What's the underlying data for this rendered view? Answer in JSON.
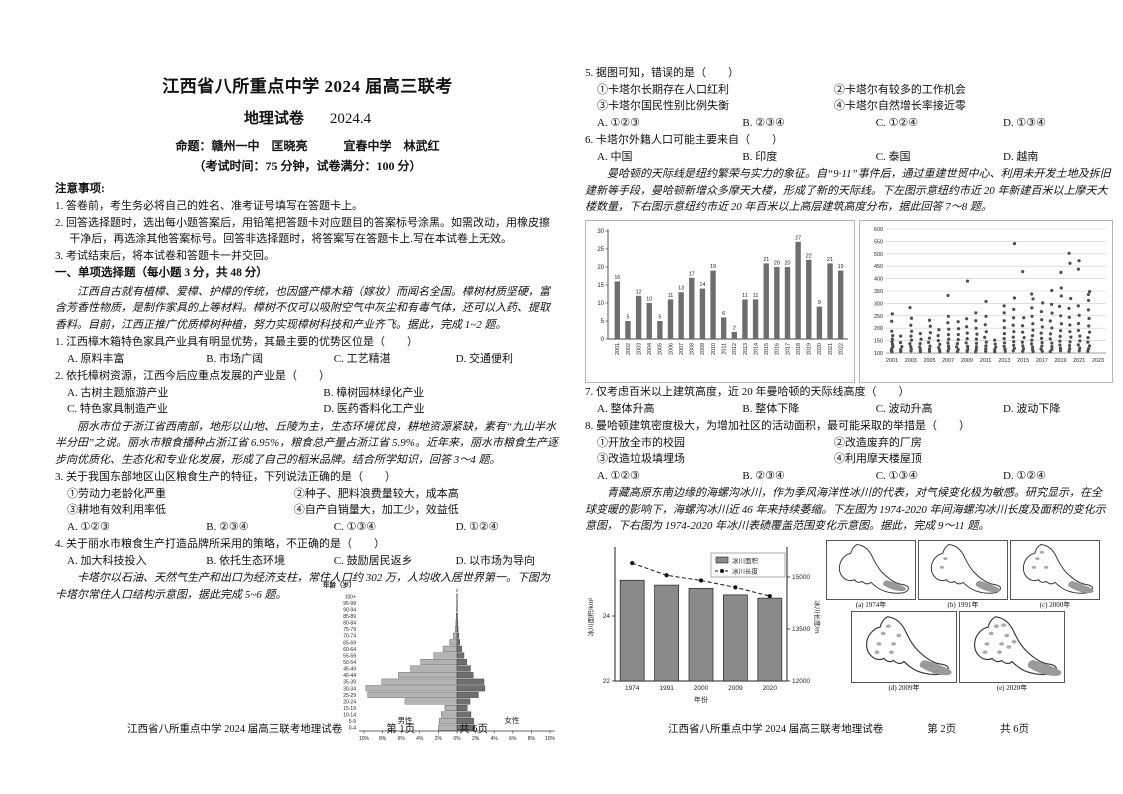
{
  "doc": {
    "title": "江西省八所重点中学 2024 届高三联考",
    "subject": "地理试卷",
    "date": "2024.4",
    "authors": "命题：赣州一中　匡晓亮　　　宜春中学　林武红",
    "exam_info": "（考试时间：75 分钟，试卷满分：100 分）",
    "notice_title": "注意事项:",
    "notices": [
      "1. 答卷前，考生务必将自己的姓名、准考证号填写在答题卡上。",
      "2. 回答选择题时，选出每小题答案后，用铅笔把答题卡对应题目的答案标号涂黑。如需改动，用橡皮擦干净后，再选涂其他答案标号。回答非选择题时，将答案写在答题卡上.写在本试卷上无效。",
      "3. 考试结束后，将本试卷和答题卡一并交回。"
    ],
    "section_title": "一、单项选择题（每小题 3 分，共 48 分）",
    "footer_text": "江西省八所重点中学 2024 届高三联考地理试卷",
    "page1_no": "第 1页",
    "page2_no": "第 2页",
    "pages_total": "共 6页"
  },
  "passages": {
    "p1": "江西自古就有植樟、爱樟、护樟的传统，也因盛产樟木箱（嫁妆）而闻名全国。樟树材质坚硬，富含芳香性物质，是制作家具的上等材料。樟树不仅可以吸附空气中灰尘和有毒气体，还可以入药、提取香料。目前，江西正推广优质樟树种植，努力实现樟树科技和产业齐飞。据此，完成 1~2 题。",
    "p2": "丽水市位于浙江省西南部，地形以山地、丘陵为主，生态环境优良，耕地资源紧缺，素有“九山半水半分田”之说。丽水市粮食播种占浙江省 6.95%，粮食总产量占浙江省 5.9%。近年来，丽水市粮食生产逐步向优质化、生态化和专业化发展，形成了自己的稻米品牌。结合所学知识，回答 3～4 题。",
    "p3": "卡塔尔以石油、天然气生产和出口为经济支柱，常住人口约 302 万，人均收入居世界第一。下图为卡塔尔常住人口结构示意图，据此完成 5~6 题。",
    "p4": "曼哈顿的天际线是纽约繁荣与实力的象征。自“9·11”事件后，通过重建世贸中心、利用未开发土地及拆旧建新等手段，曼哈顿新增众多摩天大楼，形成了新的天际线。下左图示意纽约市近 20 年新建百米以上摩天大楼数量，下右图示意纽约市近 20 年百米以上高层建筑高度分布，据此回答 7～8 题。",
    "p5": "青藏高原东南边缘的海螺沟冰川，作为季风海洋性冰川的代表，对气候变化极为敏感。研究显示，在全球变暖的影响下，海螺沟冰川近 46 年来持续萎缩。下左图为 1974-2020 年间海螺沟冰川长度及面积的变化示意图，下右图为 1974-2020 年冰川表碛覆盖范围变化示意图。据此，完成 9～11 题。"
  },
  "questions": {
    "q1": {
      "stem": "1. 江西樟木箱特色家具产业具有明显优势，其最主要的优势区位是（　　）",
      "cols": 4,
      "options": [
        "A. 原料丰富",
        "B. 市场广阔",
        "C. 工艺精湛",
        "D. 交通便利"
      ]
    },
    "q2": {
      "stem": "2. 依托樟树资源，江西今后应重点发展的产业是（　　）",
      "cols": 2,
      "options": [
        "A. 古树主题旅游产业",
        "B. 樟树园林绿化产业",
        "C. 特色家具制造产业",
        "D. 医药香料化工产业"
      ]
    },
    "q3": {
      "stem": "3. 关于我国东部地区山区粮食生产的特征，下列说法正确的是（　　）",
      "subitems": [
        [
          "①劳动力老龄化严重",
          "②种子、肥料浪费量较大，成本高"
        ],
        [
          "③耕地有效利用率低",
          "④自产自销量大，加工少，效益低"
        ]
      ],
      "cols": 4,
      "options": [
        "A. ①②③",
        "B. ②③④",
        "C. ①③④",
        "D. ①②④"
      ]
    },
    "q4": {
      "stem": "4. 关于丽水市粮食生产打造品牌所采用的策略，不正确的是（　　）",
      "cols": 4,
      "options": [
        "A. 加大科技投入",
        "B. 依托生态环境",
        "C. 鼓励居民返乡",
        "D. 以市场为导向"
      ]
    },
    "q5": {
      "stem": "5. 据图可知，错误的是（　　）",
      "subitems": [
        [
          "①卡塔尔长期存在人口红利",
          "②卡塔尔有较多的工作机会"
        ],
        [
          "③卡塔尔国民性别比例失衡",
          "④卡塔尔自然增长率接近零"
        ]
      ],
      "cols": 4,
      "options": [
        "A. ①②③",
        "B. ②③④",
        "C. ①②④",
        "D. ①③④"
      ]
    },
    "q6": {
      "stem": "6. 卡塔尔外籍人口可能主要来自（　　）",
      "cols": 4,
      "options": [
        "A. 中国",
        "B. 印度",
        "C. 泰国",
        "D. 越南"
      ]
    },
    "q7": {
      "stem": "7. 仅考虑百米以上建筑高度，近 20 年曼哈顿的天际线高度（　　）",
      "cols": 4,
      "options": [
        "A. 整体升高",
        "B. 整体下降",
        "C. 波动升高",
        "D. 波动下降"
      ]
    },
    "q8": {
      "stem": "8. 曼哈顿建筑密度极大，为增加社区的活动面积，最可能采取的举措是（　　）",
      "subitems": [
        [
          "①开放全市的校园",
          "②改造废弃的厂房"
        ],
        [
          "③改造垃圾填埋场",
          "④利用摩天楼屋顶"
        ]
      ],
      "cols": 4,
      "options": [
        "A. ①②③",
        "B. ②③④",
        "C. ①③④",
        "D. ①②④"
      ]
    }
  },
  "chart_data": [
    {
      "id": "qatar-population-pyramid",
      "type": "bar",
      "title": "年龄（岁）",
      "left_label": "男性",
      "right_label": "女性",
      "x_ticks": [
        "10%",
        "8%",
        "6%",
        "4%",
        "2%",
        "0%",
        "2%",
        "4%",
        "6%",
        "8%",
        "10%"
      ],
      "age_groups": [
        "100+",
        "95-99",
        "90-94",
        "85-89",
        "80-84",
        "75-79",
        "70-74",
        "65-69",
        "60-64",
        "55-59",
        "50-54",
        "45-49",
        "40-44",
        "35-39",
        "30-34",
        "25-29",
        "20-24",
        "15-19",
        "10-14",
        "5-9",
        "0-4"
      ],
      "male": [
        0.02,
        0.03,
        0.05,
        0.08,
        0.12,
        0.2,
        0.4,
        0.8,
        1.5,
        2.5,
        3.9,
        5.0,
        6.3,
        8.1,
        9.8,
        9.6,
        5.6,
        1.3,
        1.7,
        1.9,
        2.0
      ],
      "female": [
        0.02,
        0.02,
        0.03,
        0.05,
        0.08,
        0.12,
        0.2,
        0.3,
        0.5,
        0.75,
        1.05,
        1.45,
        1.75,
        2.9,
        3.0,
        2.3,
        1.4,
        1.1,
        1.5,
        1.8,
        1.9
      ],
      "xlim": 10
    },
    {
      "id": "new-skyscrapers-per-year",
      "type": "bar",
      "categories": [
        2001,
        2002,
        2003,
        2004,
        2005,
        2006,
        2007,
        2008,
        2009,
        2010,
        2011,
        2012,
        2013,
        2014,
        2015,
        2016,
        2017,
        2018,
        2019,
        2020,
        2021,
        2022
      ],
      "values": [
        16,
        5,
        12,
        10,
        5,
        11,
        13,
        17,
        14,
        19,
        6,
        2,
        11,
        11,
        21,
        20,
        20,
        27,
        22,
        9,
        21,
        19
      ],
      "ylim": [
        0,
        30
      ],
      "yticks": [
        0,
        5,
        10,
        15,
        20,
        25,
        30
      ]
    },
    {
      "id": "building-height-distribution",
      "type": "scatter",
      "ylim": [
        100,
        600
      ],
      "yticks": [
        100,
        150,
        200,
        250,
        300,
        350,
        400,
        450,
        500,
        550,
        600
      ],
      "x_ticks": [
        2001,
        2003,
        2005,
        2007,
        2009,
        2011,
        2013,
        2015,
        2017,
        2019,
        2021,
        2023
      ],
      "points": [
        {
          "x": 2001,
          "ys": [
            105,
            110,
            118,
            126,
            135,
            145,
            156,
            170,
            188,
            228,
            258
          ]
        },
        {
          "x": 2002,
          "ys": [
            106,
            114,
            126,
            142,
            168
          ]
        },
        {
          "x": 2003,
          "ys": [
            108,
            116,
            126,
            138,
            152,
            168,
            188,
            212,
            240,
            283
          ]
        },
        {
          "x": 2004,
          "ys": [
            105,
            113,
            124,
            138,
            156,
            178
          ]
        },
        {
          "x": 2005,
          "ys": [
            107,
            116,
            128,
            143,
            160,
            182,
            208,
            232
          ]
        },
        {
          "x": 2006,
          "ys": [
            105,
            112,
            122,
            135,
            150,
            170,
            194
          ]
        },
        {
          "x": 2007,
          "ys": [
            108,
            117,
            128,
            141,
            156,
            174,
            196,
            222,
            248,
            332
          ]
        },
        {
          "x": 2008,
          "ys": [
            106,
            114,
            125,
            138,
            154,
            174,
            198,
            226
          ]
        },
        {
          "x": 2009,
          "ys": [
            107,
            116,
            127,
            141,
            158,
            180,
            206,
            238,
            390
          ]
        },
        {
          "x": 2010,
          "ys": [
            105,
            114,
            125,
            139,
            156,
            176,
            200,
            230,
            262
          ]
        },
        {
          "x": 2011,
          "ys": [
            107,
            117,
            129,
            144,
            163,
            186,
            214,
            248,
            308
          ]
        },
        {
          "x": 2012,
          "ys": [
            105,
            113,
            123,
            136,
            152
          ]
        },
        {
          "x": 2013,
          "ys": [
            107,
            116,
            127,
            141,
            158,
            178,
            202,
            230,
            262,
            290
          ]
        },
        {
          "x": 2014,
          "ys": [
            109,
            119,
            131,
            146,
            164,
            186,
            212,
            242,
            276,
            322,
            541
          ]
        },
        {
          "x": 2015,
          "ys": [
            107,
            117,
            129,
            144,
            162,
            184,
            210,
            242,
            428
          ]
        },
        {
          "x": 2016,
          "ys": [
            106,
            114,
            124,
            137,
            152,
            170,
            192,
            218,
            248,
            282,
            318,
            338
          ]
        },
        {
          "x": 2017,
          "ys": [
            107,
            116,
            128,
            142,
            159,
            180,
            205,
            234,
            267,
            302
          ]
        },
        {
          "x": 2018,
          "ys": [
            106,
            115,
            126,
            140,
            157,
            177,
            201,
            229,
            261,
            296,
            352
          ]
        },
        {
          "x": 2019,
          "ys": [
            109,
            119,
            132,
            148,
            167,
            190,
            218,
            250,
            288,
            330,
            362,
            425
          ]
        },
        {
          "x": 2020,
          "ys": [
            107,
            117,
            130,
            145,
            164,
            186,
            213,
            244,
            280,
            320,
            462,
            502
          ]
        },
        {
          "x": 2021,
          "ys": [
            109,
            120,
            133,
            149,
            168,
            191,
            219,
            252,
            290,
            438,
            472
          ]
        },
        {
          "x": 2022,
          "ys": [
            107,
            117,
            129,
            144,
            162,
            184,
            209,
            239,
            274,
            312,
            336,
            348
          ]
        }
      ]
    },
    {
      "id": "hailuogou-glacier-area-length",
      "type": "bar+line",
      "categories": [
        1974,
        1991,
        2000,
        2009,
        2020
      ],
      "series": [
        {
          "name": "冰川面积",
          "values": [
            25.1,
            24.95,
            24.85,
            24.65,
            24.55
          ]
        },
        {
          "name": "冰川长度",
          "values": [
            15400,
            15050,
            14900,
            14700,
            14450
          ]
        }
      ],
      "ylabel_left": "冰川面积/km²",
      "ylabel_right": "冰川长度/m",
      "xlabel": "年份",
      "ylim_left": [
        22,
        26
      ],
      "yticks_left": [
        22,
        24
      ],
      "ylim_right": [
        12000,
        15750
      ],
      "yticks_right": [
        12000,
        13500,
        15000
      ]
    },
    {
      "id": "glacier-debris-cover-maps",
      "type": "map-series",
      "captions": [
        "(a) 1974年",
        "(b) 1991年",
        "(c) 2000年",
        "(d) 2009年",
        "(e) 2020年"
      ]
    }
  ]
}
